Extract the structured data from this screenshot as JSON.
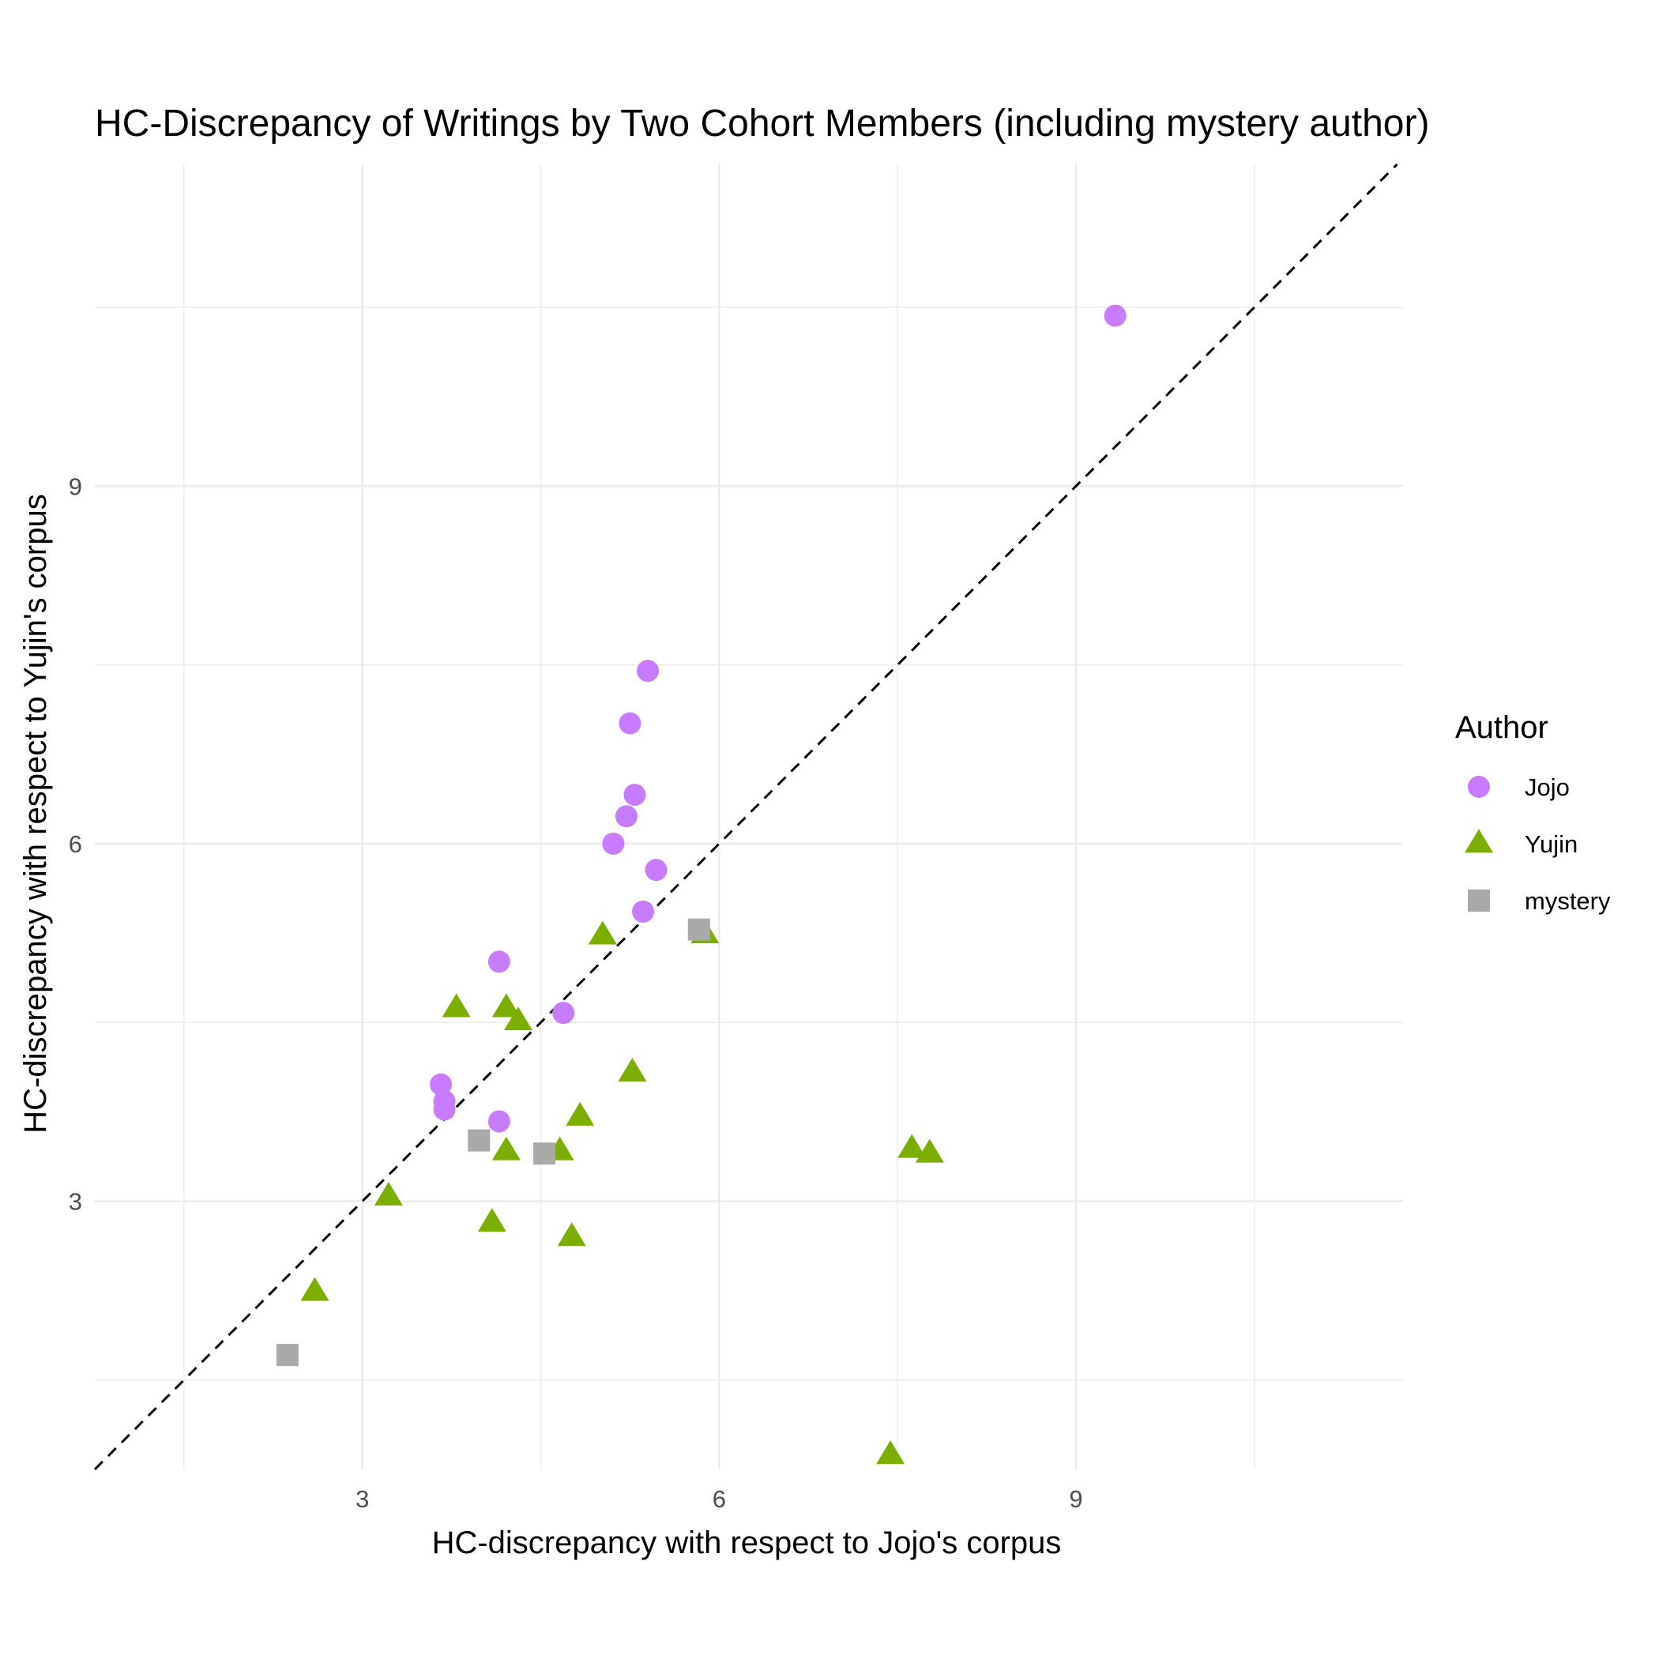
{
  "chart_data": {
    "type": "scatter",
    "title": "HC-Discrepancy of Writings by Two Cohort Members (including mystery author)",
    "xlabel": "HC-discrepancy with respect to Jojo's corpus",
    "ylabel": "HC-discrepancy with respect to Yujin's corpus",
    "xlim": [
      0.75,
      11.75
    ],
    "ylim": [
      0.75,
      11.7
    ],
    "x_ticks": [
      3,
      6,
      9
    ],
    "y_ticks": [
      3,
      6,
      9
    ],
    "grid": true,
    "reference_line": {
      "style": "dashed",
      "slope": 1,
      "intercept": 0
    },
    "legend": {
      "title": "Author",
      "position": "right"
    },
    "series": [
      {
        "name": "Jojo",
        "shape": "circle",
        "color": "#C77CFF",
        "points": [
          [
            9.33,
            10.43
          ],
          [
            5.4,
            7.45
          ],
          [
            5.25,
            7.01
          ],
          [
            5.29,
            6.41
          ],
          [
            5.22,
            6.23
          ],
          [
            5.11,
            6.0
          ],
          [
            5.47,
            5.78
          ],
          [
            5.36,
            5.43
          ],
          [
            4.15,
            5.01
          ],
          [
            4.69,
            4.58
          ],
          [
            3.66,
            3.98
          ],
          [
            3.69,
            3.84
          ],
          [
            3.69,
            3.77
          ],
          [
            4.15,
            3.67
          ]
        ]
      },
      {
        "name": "Yujin",
        "shape": "triangle",
        "color": "#7CAE00",
        "points": [
          [
            5.02,
            5.23
          ],
          [
            5.88,
            5.24
          ],
          [
            3.79,
            4.62
          ],
          [
            4.21,
            4.62
          ],
          [
            4.31,
            4.51
          ],
          [
            5.27,
            4.08
          ],
          [
            4.83,
            3.71
          ],
          [
            4.21,
            3.42
          ],
          [
            4.66,
            3.42
          ],
          [
            7.62,
            3.44
          ],
          [
            7.77,
            3.4
          ],
          [
            3.22,
            3.04
          ],
          [
            4.09,
            2.82
          ],
          [
            4.76,
            2.7
          ],
          [
            2.6,
            2.24
          ],
          [
            7.44,
            0.87
          ]
        ]
      },
      {
        "name": "mystery",
        "shape": "square",
        "color": "#A9A9A9",
        "points": [
          [
            5.83,
            5.28
          ],
          [
            3.98,
            3.51
          ],
          [
            4.53,
            3.4
          ],
          [
            2.37,
            1.71
          ]
        ]
      }
    ]
  }
}
